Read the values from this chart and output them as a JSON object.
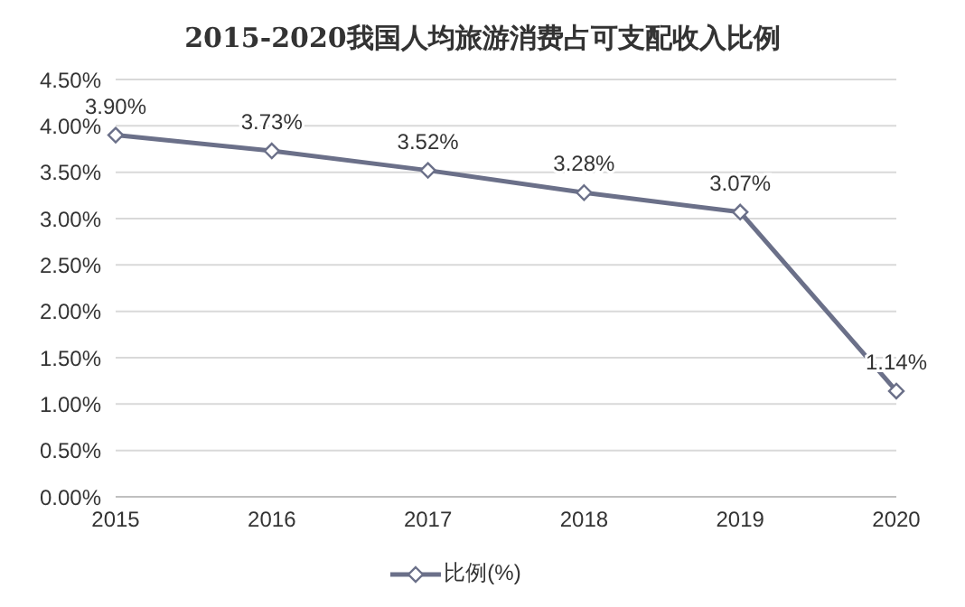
{
  "chart_data": {
    "type": "line",
    "title": "2015-2020我国人均旅游消费占可支配收入比例",
    "categories": [
      "2015",
      "2016",
      "2017",
      "2018",
      "2019",
      "2020"
    ],
    "series": [
      {
        "name": "比例(%)",
        "color": "#6b7089",
        "values": [
          3.9,
          3.73,
          3.52,
          3.28,
          3.07,
          1.14
        ],
        "value_labels": [
          "3.90%",
          "3.73%",
          "3.52%",
          "3.28%",
          "3.07%",
          "1.14%"
        ]
      }
    ],
    "ylim": [
      0,
      4.5
    ],
    "yticks": [
      {
        "value": 0,
        "label": "0.00%"
      },
      {
        "value": 0.5,
        "label": "0.50%"
      },
      {
        "value": 1,
        "label": "1.00%"
      },
      {
        "value": 1.5,
        "label": "1.50%"
      },
      {
        "value": 2,
        "label": "2.00%"
      },
      {
        "value": 2.5,
        "label": "2.50%"
      },
      {
        "value": 3,
        "label": "3.00%"
      },
      {
        "value": 3.5,
        "label": "3.50%"
      },
      {
        "value": 4,
        "label": "4.00%"
      },
      {
        "value": 4.5,
        "label": "4.50%"
      }
    ],
    "grid": "y",
    "legend": "bottom",
    "marker": "diamond",
    "line_style": "solid"
  }
}
